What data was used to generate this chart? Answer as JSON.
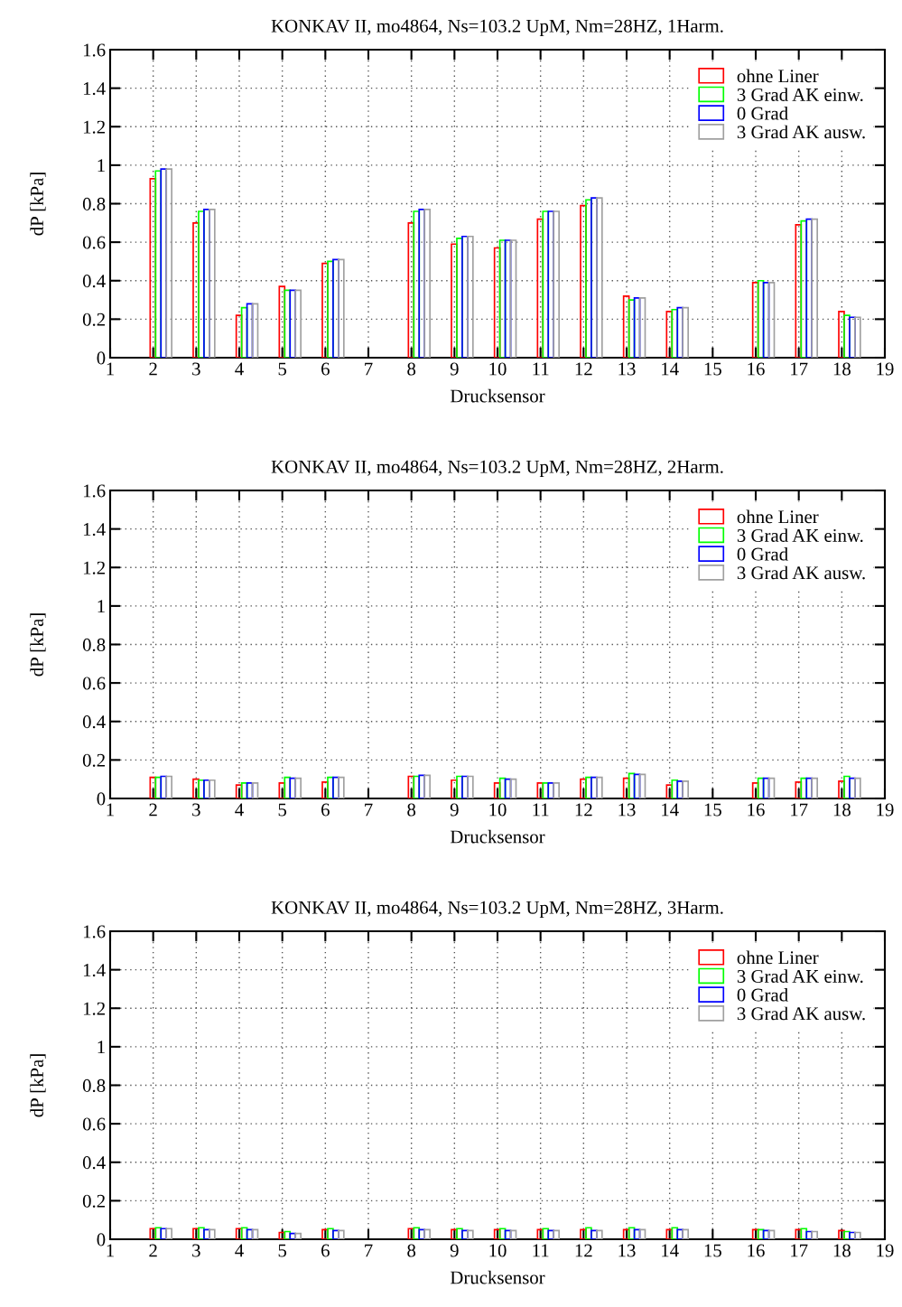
{
  "chart_data": [
    {
      "type": "bar",
      "title": "KONKAV II, mo4864, Ns=103.2 UpM, Nm=28HZ, 1Harm.",
      "xlabel": "Drucksensor",
      "ylabel": "dP [kPa]",
      "x": [
        2,
        3,
        4,
        5,
        6,
        8,
        9,
        10,
        11,
        12,
        13,
        14,
        16,
        17,
        18
      ],
      "xlim": [
        1,
        19
      ],
      "xticks": [
        1,
        2,
        3,
        4,
        5,
        6,
        7,
        8,
        9,
        10,
        11,
        12,
        13,
        14,
        15,
        16,
        17,
        18,
        19
      ],
      "ylim": [
        0,
        1.6
      ],
      "yticks": [
        0,
        0.2,
        0.4,
        0.6,
        0.8,
        1,
        1.2,
        1.4,
        1.6
      ],
      "grid": true,
      "legend": "top right",
      "series": [
        {
          "name": "ohne Liner",
          "color": "#ff0000",
          "values": [
            0.93,
            0.7,
            0.22,
            0.37,
            0.49,
            0.7,
            0.59,
            0.57,
            0.72,
            0.79,
            0.32,
            0.24,
            0.39,
            0.69,
            0.24
          ]
        },
        {
          "name": "3 Grad AK einw.",
          "color": "#00ff00",
          "values": [
            0.97,
            0.76,
            0.26,
            0.35,
            0.5,
            0.76,
            0.62,
            0.61,
            0.76,
            0.82,
            0.3,
            0.25,
            0.4,
            0.71,
            0.22
          ]
        },
        {
          "name": "0 Grad",
          "color": "#0000ff",
          "values": [
            0.98,
            0.77,
            0.28,
            0.35,
            0.51,
            0.77,
            0.63,
            0.61,
            0.76,
            0.83,
            0.31,
            0.26,
            0.39,
            0.72,
            0.21
          ]
        },
        {
          "name": "3 Grad AK ausw.",
          "color": "#a0a0a0",
          "values": [
            0.98,
            0.77,
            0.28,
            0.35,
            0.51,
            0.77,
            0.63,
            0.61,
            0.76,
            0.83,
            0.31,
            0.26,
            0.39,
            0.72,
            0.21
          ]
        }
      ]
    },
    {
      "type": "bar",
      "title": "KONKAV II, mo4864, Ns=103.2 UpM, Nm=28HZ, 2Harm.",
      "xlabel": "Drucksensor",
      "ylabel": "dP [kPa]",
      "x": [
        2,
        3,
        4,
        5,
        6,
        8,
        9,
        10,
        11,
        12,
        13,
        14,
        16,
        17,
        18
      ],
      "xlim": [
        1,
        19
      ],
      "xticks": [
        1,
        2,
        3,
        4,
        5,
        6,
        7,
        8,
        9,
        10,
        11,
        12,
        13,
        14,
        15,
        16,
        17,
        18,
        19
      ],
      "ylim": [
        0,
        1.6
      ],
      "yticks": [
        0,
        0.2,
        0.4,
        0.6,
        0.8,
        1,
        1.2,
        1.4,
        1.6
      ],
      "grid": true,
      "legend": "top right",
      "series": [
        {
          "name": "ohne Liner",
          "color": "#ff0000",
          "values": [
            0.11,
            0.1,
            0.07,
            0.08,
            0.085,
            0.115,
            0.095,
            0.08,
            0.08,
            0.1,
            0.105,
            0.07,
            0.08,
            0.085,
            0.09
          ]
        },
        {
          "name": "3 Grad AK einw.",
          "color": "#00ff00",
          "values": [
            0.11,
            0.095,
            0.08,
            0.11,
            0.11,
            0.115,
            0.115,
            0.105,
            0.08,
            0.11,
            0.13,
            0.095,
            0.105,
            0.105,
            0.115
          ]
        },
        {
          "name": "0 Grad",
          "color": "#0000ff",
          "values": [
            0.115,
            0.095,
            0.08,
            0.105,
            0.11,
            0.12,
            0.115,
            0.1,
            0.08,
            0.11,
            0.125,
            0.09,
            0.105,
            0.105,
            0.105
          ]
        },
        {
          "name": "3 Grad AK ausw.",
          "color": "#a0a0a0",
          "values": [
            0.115,
            0.095,
            0.08,
            0.105,
            0.11,
            0.12,
            0.115,
            0.1,
            0.08,
            0.11,
            0.125,
            0.09,
            0.105,
            0.105,
            0.105
          ]
        }
      ]
    },
    {
      "type": "bar",
      "title": "KONKAV II, mo4864, Ns=103.2 UpM, Nm=28HZ, 3Harm.",
      "xlabel": "Drucksensor",
      "ylabel": "dP [kPa]",
      "x": [
        2,
        3,
        4,
        5,
        6,
        8,
        9,
        10,
        11,
        12,
        13,
        14,
        16,
        17,
        18
      ],
      "xlim": [
        1,
        19
      ],
      "xticks": [
        1,
        2,
        3,
        4,
        5,
        6,
        7,
        8,
        9,
        10,
        11,
        12,
        13,
        14,
        15,
        16,
        17,
        18,
        19
      ],
      "ylim": [
        0,
        1.6
      ],
      "yticks": [
        0,
        0.2,
        0.4,
        0.6,
        0.8,
        1,
        1.2,
        1.4,
        1.6
      ],
      "grid": true,
      "legend": "top right",
      "series": [
        {
          "name": "ohne Liner",
          "color": "#ff0000",
          "values": [
            0.055,
            0.055,
            0.055,
            0.035,
            0.05,
            0.055,
            0.05,
            0.05,
            0.05,
            0.05,
            0.05,
            0.05,
            0.05,
            0.05,
            0.045
          ]
        },
        {
          "name": "3 Grad AK einw.",
          "color": "#00ff00",
          "values": [
            0.06,
            0.06,
            0.06,
            0.04,
            0.055,
            0.06,
            0.055,
            0.055,
            0.055,
            0.06,
            0.06,
            0.06,
            0.05,
            0.055,
            0.04
          ]
        },
        {
          "name": "0 Grad",
          "color": "#0000ff",
          "values": [
            0.055,
            0.05,
            0.05,
            0.03,
            0.045,
            0.05,
            0.045,
            0.045,
            0.045,
            0.045,
            0.05,
            0.05,
            0.045,
            0.04,
            0.035
          ]
        },
        {
          "name": "3 Grad AK ausw.",
          "color": "#a0a0a0",
          "values": [
            0.055,
            0.05,
            0.05,
            0.03,
            0.045,
            0.05,
            0.045,
            0.045,
            0.045,
            0.045,
            0.05,
            0.05,
            0.045,
            0.04,
            0.035
          ]
        }
      ]
    }
  ]
}
